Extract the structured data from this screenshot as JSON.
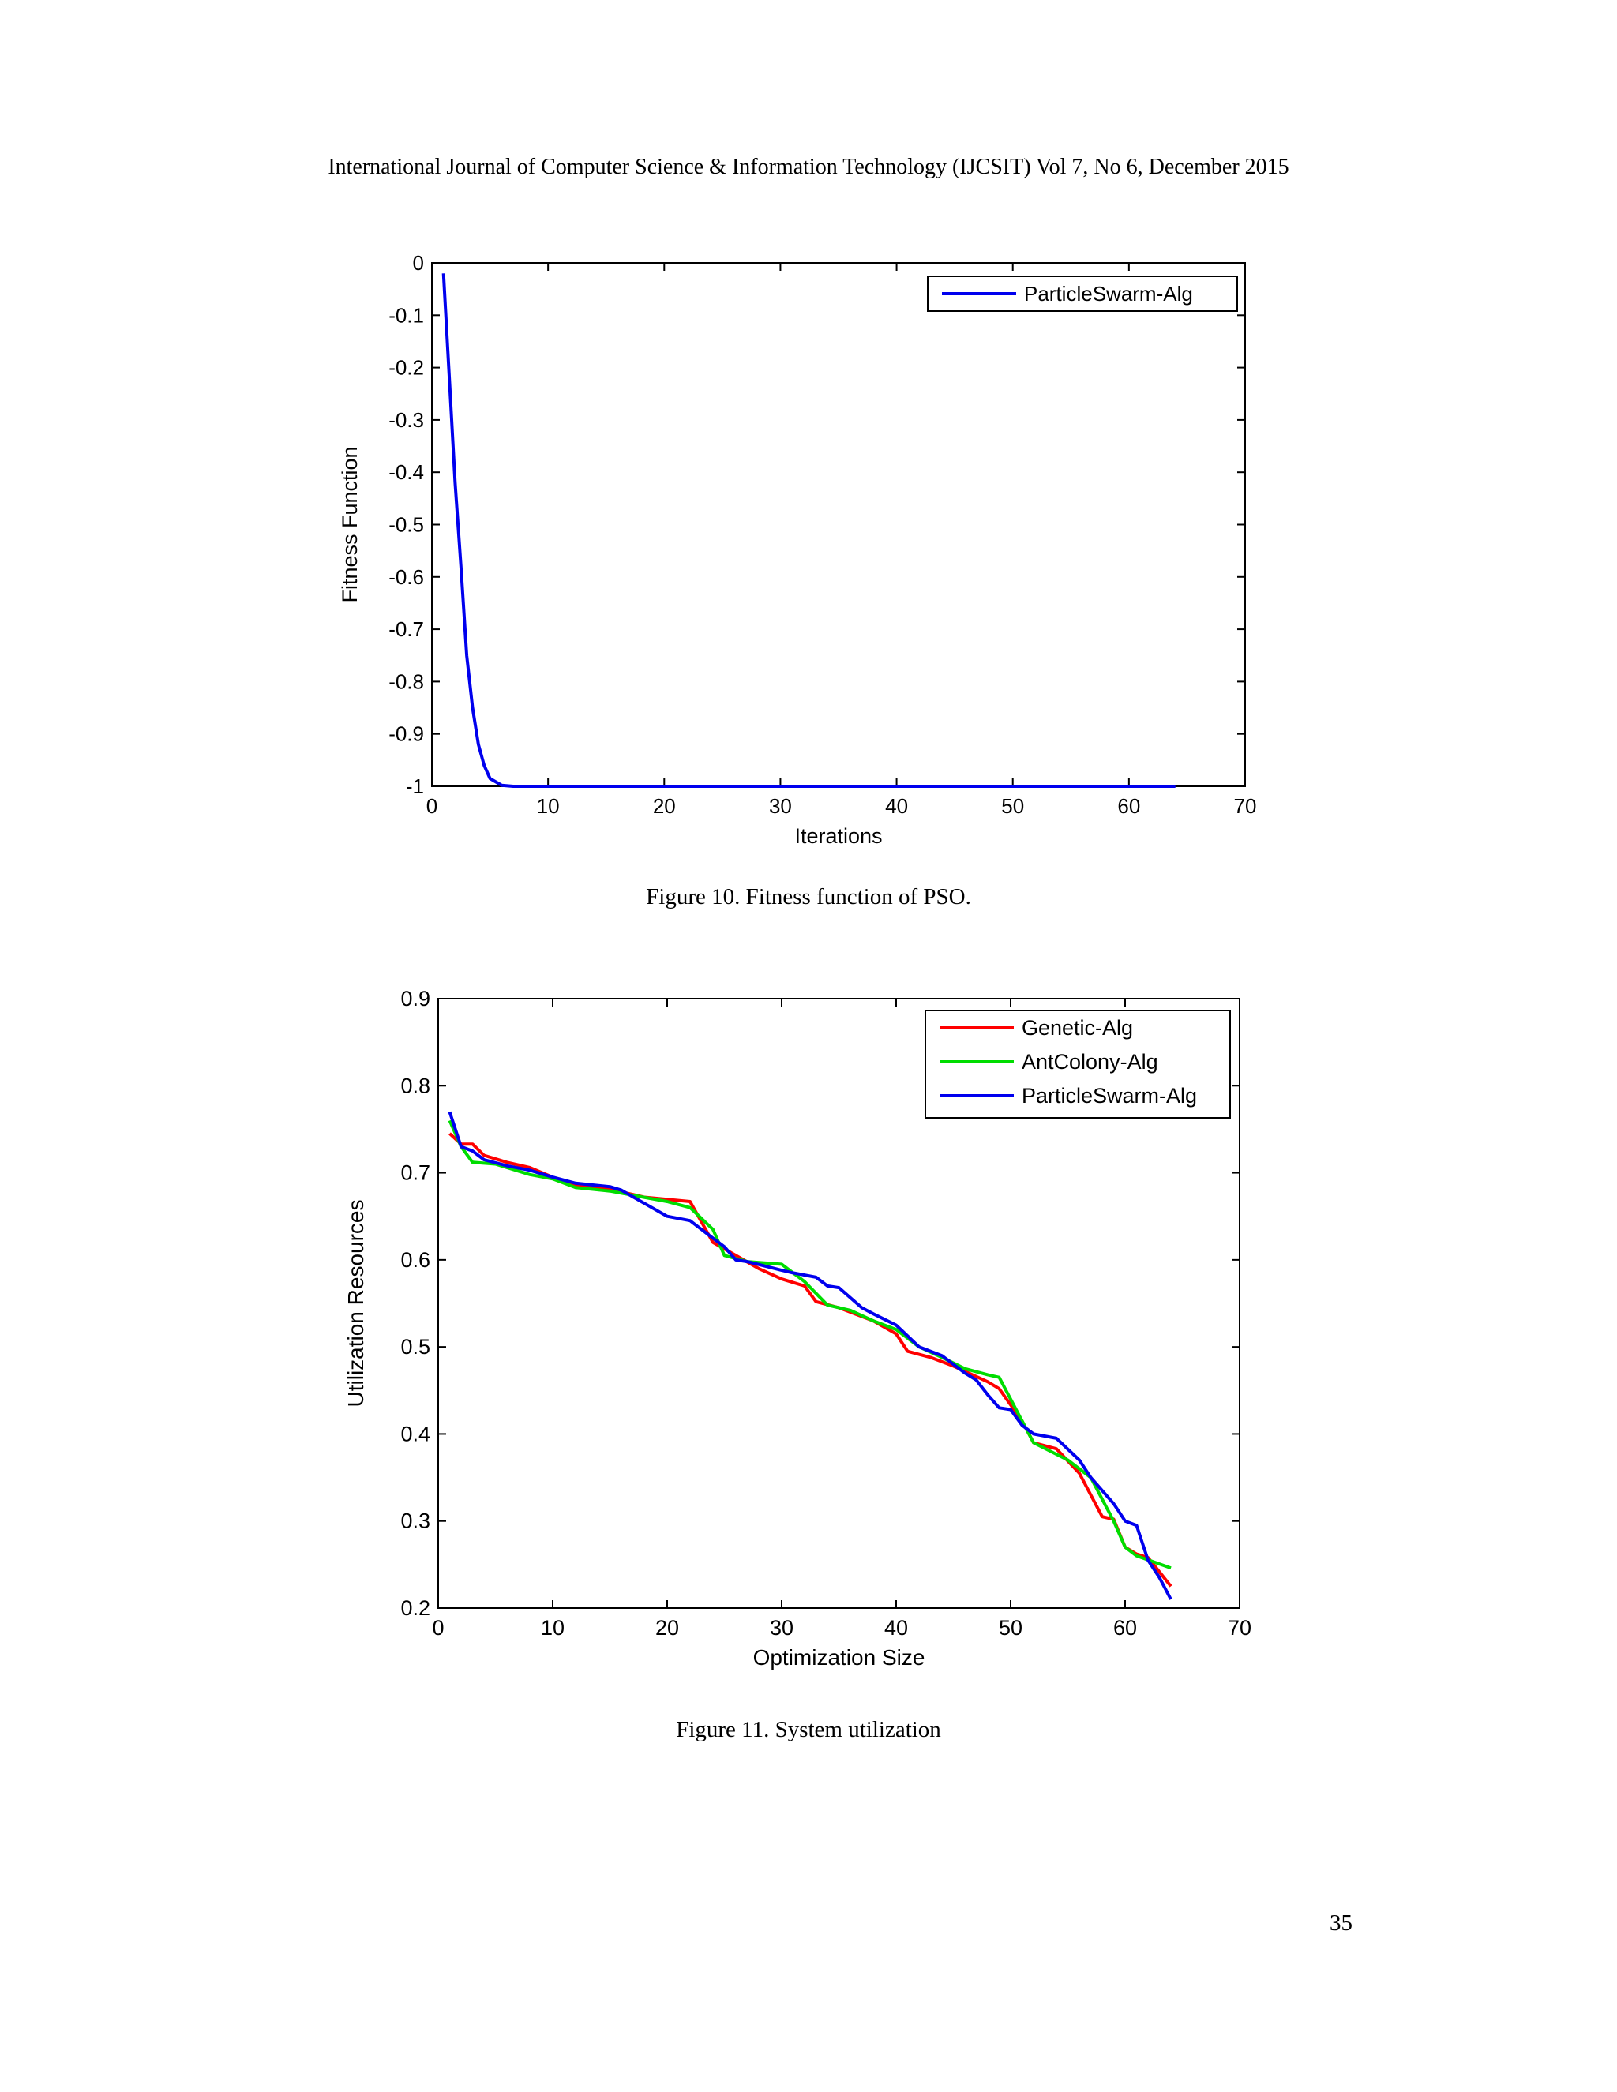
{
  "header": {
    "running_head": "International Journal of Computer Science & Information Technology (IJCSIT) Vol 7, No 6, December 2015"
  },
  "figures": [
    {
      "caption": "Figure 10. Fitness function of PSO."
    },
    {
      "caption": "Figure 11. System utilization"
    }
  ],
  "footer": {
    "page_number": "35"
  },
  "colors": {
    "genetic": "#ff0000",
    "antcolony": "#00dd00",
    "pso": "#0000ee"
  },
  "chart_data": [
    {
      "type": "line",
      "title": "",
      "xlabel": "Iterations",
      "ylabel": "Fitness Function",
      "xlim": [
        0,
        70
      ],
      "ylim": [
        -1,
        0
      ],
      "xticks": [
        0,
        10,
        20,
        30,
        40,
        50,
        60,
        70
      ],
      "yticks": [
        0,
        -0.1,
        -0.2,
        -0.3,
        -0.4,
        -0.5,
        -0.6,
        -0.7,
        -0.8,
        -0.9,
        -1
      ],
      "ytick_labels": [
        "0",
        "-0.1",
        "-0.2",
        "-0.3",
        "-0.4",
        "-0.5",
        "-0.6",
        "-0.7",
        "-0.8",
        "-0.9",
        "-1"
      ],
      "legend_position": "top-right",
      "grid": false,
      "series": [
        {
          "name": "ParticleSwarm-Alg",
          "color": "#0000ee",
          "x": [
            1,
            1.5,
            2,
            2.5,
            3,
            3.5,
            4,
            4.5,
            5,
            6,
            7,
            10,
            20,
            30,
            40,
            50,
            60,
            64
          ],
          "y": [
            -0.02,
            -0.22,
            -0.42,
            -0.58,
            -0.75,
            -0.85,
            -0.92,
            -0.96,
            -0.985,
            -0.998,
            -1,
            -1,
            -1,
            -1,
            -1,
            -1,
            -1,
            -1
          ]
        }
      ]
    },
    {
      "type": "line",
      "title": "",
      "xlabel": "Optimization Size",
      "ylabel": "Utilization Resources",
      "xlim": [
        0,
        70
      ],
      "ylim": [
        0.2,
        0.9
      ],
      "xticks": [
        0,
        10,
        20,
        30,
        40,
        50,
        60,
        70
      ],
      "yticks": [
        0.2,
        0.3,
        0.4,
        0.5,
        0.6,
        0.7,
        0.8,
        0.9
      ],
      "ytick_labels": [
        "0.2",
        "0.3",
        "0.4",
        "0.5",
        "0.6",
        "0.7",
        "0.8",
        "0.9"
      ],
      "legend_position": "top-right",
      "grid": false,
      "series": [
        {
          "name": "Genetic-Alg",
          "color": "#ff0000",
          "x": [
            1,
            2,
            3,
            4,
            6,
            8,
            10,
            12,
            15,
            18,
            22,
            24,
            26,
            28,
            30,
            32,
            33,
            35,
            38,
            40,
            41,
            43,
            45,
            48,
            49,
            51,
            52,
            54,
            56,
            58,
            59,
            60,
            61,
            62,
            64
          ],
          "y": [
            0.745,
            0.733,
            0.733,
            0.72,
            0.712,
            0.706,
            0.695,
            0.686,
            0.681,
            0.672,
            0.667,
            0.62,
            0.605,
            0.59,
            0.578,
            0.57,
            0.552,
            0.545,
            0.53,
            0.515,
            0.495,
            0.488,
            0.478,
            0.46,
            0.452,
            0.415,
            0.39,
            0.383,
            0.355,
            0.305,
            0.302,
            0.27,
            0.262,
            0.258,
            0.225
          ]
        },
        {
          "name": "AntColony-Alg",
          "color": "#00dd00",
          "x": [
            1,
            2,
            3,
            5,
            8,
            10,
            12,
            15,
            20,
            22,
            24,
            25,
            27,
            30,
            32,
            34,
            36,
            38,
            40,
            42,
            44,
            46,
            48,
            49,
            52,
            55,
            57,
            59,
            60,
            61,
            64
          ],
          "y": [
            0.76,
            0.73,
            0.712,
            0.71,
            0.698,
            0.693,
            0.683,
            0.679,
            0.667,
            0.66,
            0.635,
            0.605,
            0.598,
            0.595,
            0.575,
            0.548,
            0.542,
            0.53,
            0.52,
            0.5,
            0.488,
            0.475,
            0.468,
            0.465,
            0.39,
            0.37,
            0.35,
            0.3,
            0.27,
            0.26,
            0.246
          ]
        },
        {
          "name": "ParticleSwarm-Alg",
          "color": "#0000ee",
          "x": [
            1,
            2,
            3,
            4,
            6,
            8,
            10,
            12,
            15,
            16,
            18,
            20,
            22,
            23,
            25,
            26,
            27,
            30,
            31,
            33,
            34,
            35,
            37,
            38,
            40,
            42,
            44,
            46,
            47,
            48,
            49,
            50,
            51,
            52,
            54,
            56,
            57,
            59,
            60,
            61,
            62,
            63,
            64
          ],
          "y": [
            0.77,
            0.73,
            0.725,
            0.715,
            0.708,
            0.703,
            0.695,
            0.688,
            0.684,
            0.68,
            0.665,
            0.65,
            0.645,
            0.635,
            0.615,
            0.6,
            0.598,
            0.588,
            0.585,
            0.58,
            0.57,
            0.568,
            0.545,
            0.538,
            0.525,
            0.5,
            0.49,
            0.47,
            0.462,
            0.445,
            0.43,
            0.428,
            0.41,
            0.4,
            0.395,
            0.37,
            0.35,
            0.32,
            0.3,
            0.295,
            0.255,
            0.235,
            0.21
          ]
        }
      ]
    }
  ]
}
